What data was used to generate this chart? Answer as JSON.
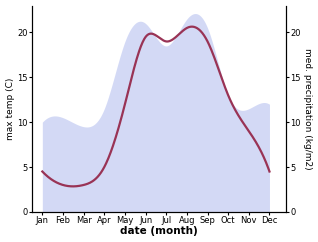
{
  "months": [
    "Jan",
    "Feb",
    "Mar",
    "Apr",
    "May",
    "Jun",
    "Jul",
    "Aug",
    "Sep",
    "Oct",
    "Nov",
    "Dec"
  ],
  "month_positions": [
    1,
    2,
    3,
    4,
    5,
    6,
    7,
    8,
    9,
    10,
    11,
    12
  ],
  "temp_values": [
    4.5,
    3.0,
    3.0,
    5.0,
    12.0,
    19.5,
    19.0,
    20.5,
    19.0,
    13.0,
    9.0,
    4.5
  ],
  "precip_values": [
    10.0,
    10.5,
    9.5,
    11.5,
    19.0,
    21.0,
    18.5,
    21.5,
    20.5,
    13.0,
    11.5,
    12.0
  ],
  "temp_color": "#993355",
  "precip_color": "#b0bbee",
  "precip_fill_alpha": 0.55,
  "xlabel": "date (month)",
  "ylabel_left": "max temp (C)",
  "ylabel_right": "med. precipitation (kg/m2)",
  "xlim": [
    0.5,
    12.8
  ],
  "ylim_left": [
    0,
    23
  ],
  "ylim_right": [
    0,
    23
  ],
  "yticks_left": [
    0,
    5,
    10,
    15,
    20
  ],
  "yticks_right": [
    0,
    5,
    10,
    15,
    20
  ],
  "background_color": "#ffffff",
  "line_width": 1.6,
  "tick_fontsize": 6.0,
  "label_fontsize": 6.5,
  "xlabel_fontsize": 7.5
}
